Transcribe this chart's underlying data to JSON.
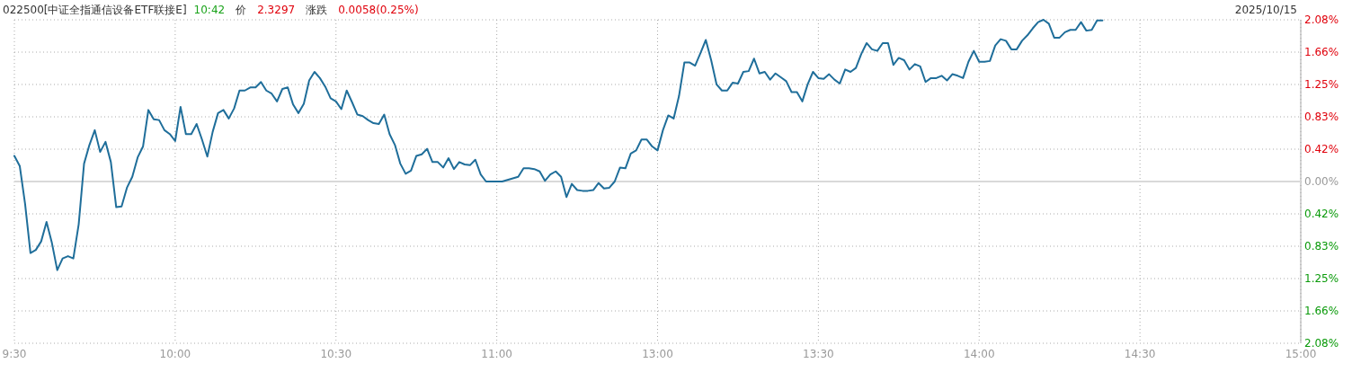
{
  "chart_data": {
    "type": "line",
    "title": "022500[中证全指通信设备ETF联接E]",
    "annotations": [
      "10:42",
      "价",
      "2.3297",
      "涨跌",
      "0.0058(0.25%)",
      "2025/10/15"
    ],
    "categories": [
      "9:30",
      null,
      null,
      null,
      null,
      null,
      null,
      null,
      null,
      null,
      null,
      null,
      null,
      null,
      null,
      null,
      null,
      null,
      null,
      null,
      null,
      null,
      null,
      null,
      null,
      null,
      null,
      null,
      null,
      null,
      "10:00",
      null,
      null,
      null,
      null,
      null,
      null,
      null,
      null,
      null,
      null,
      null,
      null,
      null,
      null,
      null,
      null,
      null,
      null,
      null,
      null,
      null,
      null,
      null,
      null,
      null,
      null,
      null,
      null,
      null,
      "10:30",
      null,
      null,
      null,
      null,
      null,
      null,
      null,
      null,
      null,
      null,
      null,
      null,
      null,
      null,
      null,
      null,
      null,
      null,
      null,
      null,
      null,
      null,
      null,
      null,
      null,
      null,
      null,
      null,
      null,
      "11:00",
      null,
      null,
      null,
      null,
      null,
      null,
      null,
      null,
      null,
      null,
      null,
      null,
      null,
      null,
      null,
      null,
      null,
      null,
      null,
      null,
      null,
      null,
      null,
      null,
      null,
      null,
      null,
      null,
      null,
      "13:00",
      null,
      null,
      null,
      null,
      null,
      null,
      null,
      null,
      null,
      null,
      null,
      null,
      null,
      null,
      null,
      null,
      null,
      null,
      null,
      null,
      null,
      null,
      null,
      null,
      null,
      null,
      null,
      null,
      null,
      "13:30",
      null,
      null,
      null,
      null,
      null,
      null,
      null,
      null,
      null,
      null,
      null,
      null,
      null,
      null,
      null,
      null,
      null,
      null,
      null,
      null,
      null,
      null,
      null,
      null,
      null,
      null,
      null,
      null,
      null,
      "14:00",
      null,
      null,
      null,
      null,
      null,
      null,
      null,
      null,
      null,
      null,
      null,
      null,
      null,
      null,
      null,
      null,
      null,
      null,
      null,
      null,
      null,
      null,
      null,
      null,
      null,
      null,
      null,
      null,
      null,
      "14:30",
      null,
      null,
      null,
      null,
      null,
      null,
      null,
      null,
      null,
      null,
      null,
      null,
      null,
      null,
      null,
      null,
      null,
      null,
      null,
      null,
      null,
      null,
      null,
      null,
      null,
      null,
      null,
      null,
      null,
      "15:00"
    ],
    "series": [
      {
        "color": "#1f6e9a",
        "values": [
          0.33,
          0.2,
          -0.29,
          -0.92,
          -0.88,
          -0.77,
          -0.52,
          -0.79,
          -1.14,
          -0.99,
          -0.96,
          -0.99,
          -0.55,
          0.23,
          0.47,
          0.66,
          0.38,
          0.51,
          0.25,
          -0.33,
          -0.32,
          -0.08,
          0.06,
          0.31,
          0.45,
          0.92,
          0.8,
          0.79,
          0.66,
          0.61,
          0.52,
          0.96,
          0.61,
          0.61,
          0.74,
          0.54,
          0.32,
          0.64,
          0.88,
          0.92,
          0.81,
          0.94,
          1.17,
          1.17,
          1.21,
          1.21,
          1.28,
          1.17,
          1.13,
          1.03,
          1.19,
          1.21,
          0.99,
          0.88,
          1.0,
          1.3,
          1.41,
          1.33,
          1.22,
          1.07,
          1.03,
          0.93,
          1.17,
          1.02,
          0.86,
          0.84,
          0.79,
          0.75,
          0.74,
          0.86,
          0.61,
          0.47,
          0.23,
          0.1,
          0.14,
          0.33,
          0.35,
          0.42,
          0.25,
          0.25,
          0.18,
          0.3,
          0.16,
          0.25,
          0.22,
          0.21,
          0.28,
          0.09,
          0.0,
          0.0,
          0.0,
          0.0,
          0.02,
          0.04,
          0.06,
          0.17,
          0.17,
          0.16,
          0.13,
          0.01,
          0.09,
          0.13,
          0.06,
          -0.2,
          -0.03,
          -0.11,
          -0.12,
          -0.12,
          -0.11,
          -0.02,
          -0.09,
          -0.08,
          0.0,
          0.18,
          0.17,
          0.36,
          0.4,
          0.54,
          0.54,
          0.45,
          0.4,
          0.66,
          0.85,
          0.81,
          1.1,
          1.53,
          1.53,
          1.49,
          1.65,
          1.82,
          1.56,
          1.25,
          1.17,
          1.17,
          1.27,
          1.26,
          1.41,
          1.42,
          1.58,
          1.39,
          1.41,
          1.31,
          1.39,
          1.34,
          1.29,
          1.15,
          1.15,
          1.03,
          1.25,
          1.41,
          1.33,
          1.32,
          1.38,
          1.31,
          1.26,
          1.44,
          1.41,
          1.46,
          1.64,
          1.78,
          1.7,
          1.68,
          1.78,
          1.78,
          1.5,
          1.59,
          1.56,
          1.44,
          1.51,
          1.48,
          1.28,
          1.33,
          1.33,
          1.36,
          1.3,
          1.38,
          1.36,
          1.33,
          1.54,
          1.68,
          1.54,
          1.54,
          1.55,
          1.75,
          1.83,
          1.81,
          1.7,
          1.7,
          1.81,
          1.88,
          1.97,
          2.05,
          2.08,
          2.03,
          1.85,
          1.85,
          1.92,
          1.95,
          1.95,
          2.05,
          1.94,
          1.95,
          2.07,
          2.07,
          null,
          null,
          null,
          null,
          null,
          null,
          null,
          null,
          null,
          null,
          null,
          null,
          null,
          null,
          null,
          null,
          null,
          null,
          null,
          null,
          null,
          null,
          null,
          null,
          null,
          null,
          null,
          null,
          null,
          null,
          null,
          null,
          null,
          null,
          null,
          null,
          null
        ]
      }
    ],
    "ylim": [
      -2.08,
      2.08
    ],
    "yticks": [
      {
        "value": 2.08,
        "label": "2.08%"
      },
      {
        "value": 1.664,
        "label": "1.66%"
      },
      {
        "value": 1.248,
        "label": "1.25%"
      },
      {
        "value": 0.832,
        "label": "0.83%"
      },
      {
        "value": 0.416,
        "label": "0.42%"
      },
      {
        "value": 0,
        "label": "0.00%"
      },
      {
        "value": -0.416,
        "label": "0.42%"
      },
      {
        "value": -0.832,
        "label": "0.83%"
      },
      {
        "value": -1.248,
        "label": "1.25%"
      },
      {
        "value": -1.664,
        "label": "1.66%"
      },
      {
        "value": -2.08,
        "label": "2.08%"
      }
    ],
    "grid": true,
    "ref_lines": [
      {
        "axis": "y",
        "value": 0,
        "color": "#d9d9d9"
      }
    ]
  }
}
